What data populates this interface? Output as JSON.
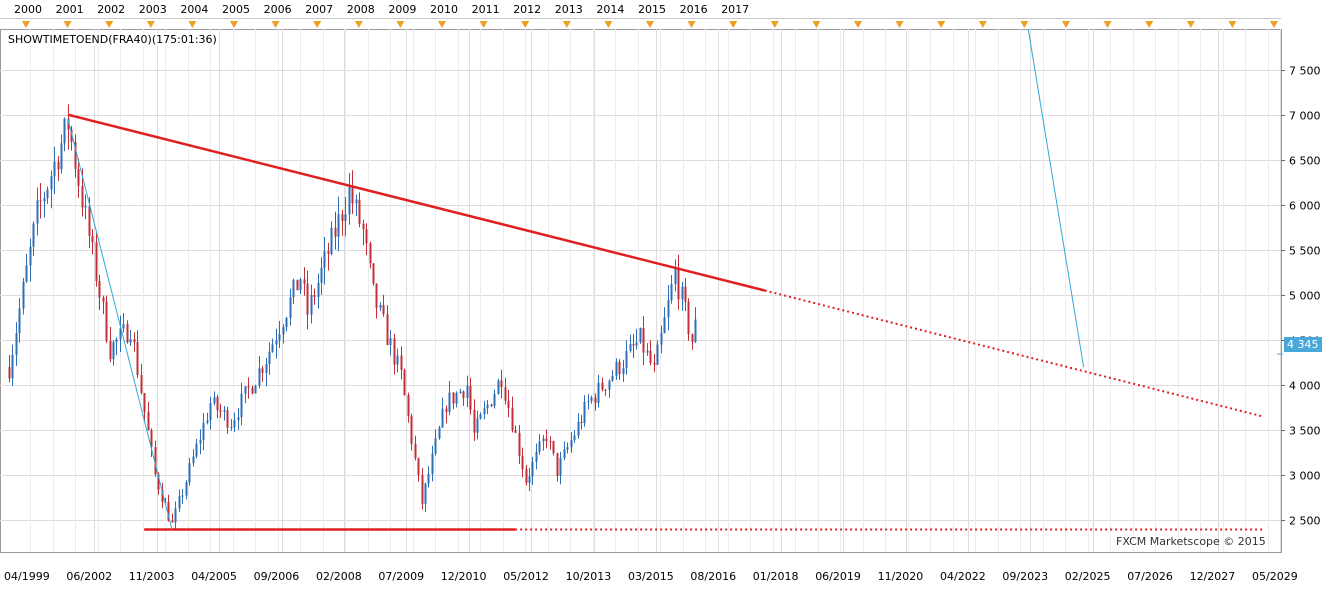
{
  "chart_label": "SHOWTIMETOEND(FRA40)(175:01:36)",
  "watermark": "FXCM Marketscope © 2015",
  "current_price_label": "4 345",
  "colors": {
    "bull": "#2f6fb8",
    "bear": "#c0303a",
    "trendline": "#e02020",
    "projection": "#2fa8d8",
    "grid": "#dcdcdc",
    "event_marker": "#f0a020",
    "price_badge": "#49a7d9"
  },
  "chart_data": {
    "type": "candlestick",
    "timeframe": "monthly",
    "symbol": "FRA40",
    "ylim": [
      2150,
      7950
    ],
    "y_ticks": [
      2500,
      3000,
      3500,
      4000,
      4500,
      5000,
      5500,
      6000,
      6500,
      7000,
      7500
    ],
    "y_tick_labels": [
      "2 500",
      "3 000",
      "3 500",
      "4 000",
      "4 500",
      "5 000",
      "5 500",
      "6 000",
      "6 500",
      "7 000",
      "7 500"
    ],
    "x_tick_labels": [
      "04/1999",
      "06/2002",
      "11/2003",
      "04/2005",
      "09/2006",
      "02/2008",
      "07/2009",
      "12/2010",
      "05/2012",
      "10/2013",
      "03/2015",
      "08/2016",
      "01/2018",
      "06/2019",
      "11/2020",
      "04/2022",
      "09/2023",
      "02/2025",
      "07/2026",
      "12/2027",
      "05/2029"
    ],
    "top_year_labels": [
      "2000",
      "2001",
      "2002",
      "2003",
      "2004",
      "2005",
      "2006",
      "2007",
      "2008",
      "2009",
      "2010",
      "2011",
      "2012",
      "2013",
      "2014",
      "2015",
      "2016",
      "2017"
    ],
    "price_anchors": [
      [
        "1999-04",
        4200
      ],
      [
        "1999-12",
        5900
      ],
      [
        "2000-09",
        6900
      ],
      [
        "2001-09",
        4400
      ],
      [
        "2002-03",
        4650
      ],
      [
        "2002-10",
        3000
      ],
      [
        "2003-03",
        2450
      ],
      [
        "2004-02",
        3800
      ],
      [
        "2004-08",
        3600
      ],
      [
        "2005-06",
        4300
      ],
      [
        "2006-04",
        5200
      ],
      [
        "2006-06",
        4800
      ],
      [
        "2007-06",
        6150
      ],
      [
        "2007-10",
        5700
      ],
      [
        "2008-01",
        5000
      ],
      [
        "2008-09",
        4100
      ],
      [
        "2009-03",
        2700
      ],
      [
        "2009-10",
        3800
      ],
      [
        "2010-04",
        4000
      ],
      [
        "2010-06",
        3450
      ],
      [
        "2011-02",
        4100
      ],
      [
        "2011-09",
        2950
      ],
      [
        "2012-03",
        3450
      ],
      [
        "2012-06",
        3050
      ],
      [
        "2013-03",
        3800
      ],
      [
        "2014-06",
        4500
      ],
      [
        "2014-10",
        4150
      ],
      [
        "2015-04",
        5250
      ],
      [
        "2015-09",
        4500
      ],
      [
        "2015-10",
        4650
      ]
    ],
    "trendlines": [
      {
        "kind": "resistance",
        "from": {
          "date": "2000-09",
          "value": 7000
        },
        "to": {
          "date": "2017-06",
          "value": 5050
        },
        "extended_to": {
          "date": "2029-06",
          "value": 3650
        }
      },
      {
        "kind": "support",
        "from": {
          "date": "2002-07",
          "value": 2400
        },
        "to": {
          "date": "2011-06",
          "value": 2400
        },
        "extended_to": {
          "date": "2029-06",
          "value": 2400
        }
      }
    ],
    "projection_lines": [
      {
        "from": {
          "date": "2000-09",
          "value": 6950
        },
        "to": {
          "date": "2003-03",
          "value": 2400
        }
      },
      {
        "from": {
          "date": "2023-10",
          "value": 7950
        },
        "to": {
          "date": "2025-02",
          "value": 4200
        }
      }
    ],
    "current_price": 4345
  }
}
